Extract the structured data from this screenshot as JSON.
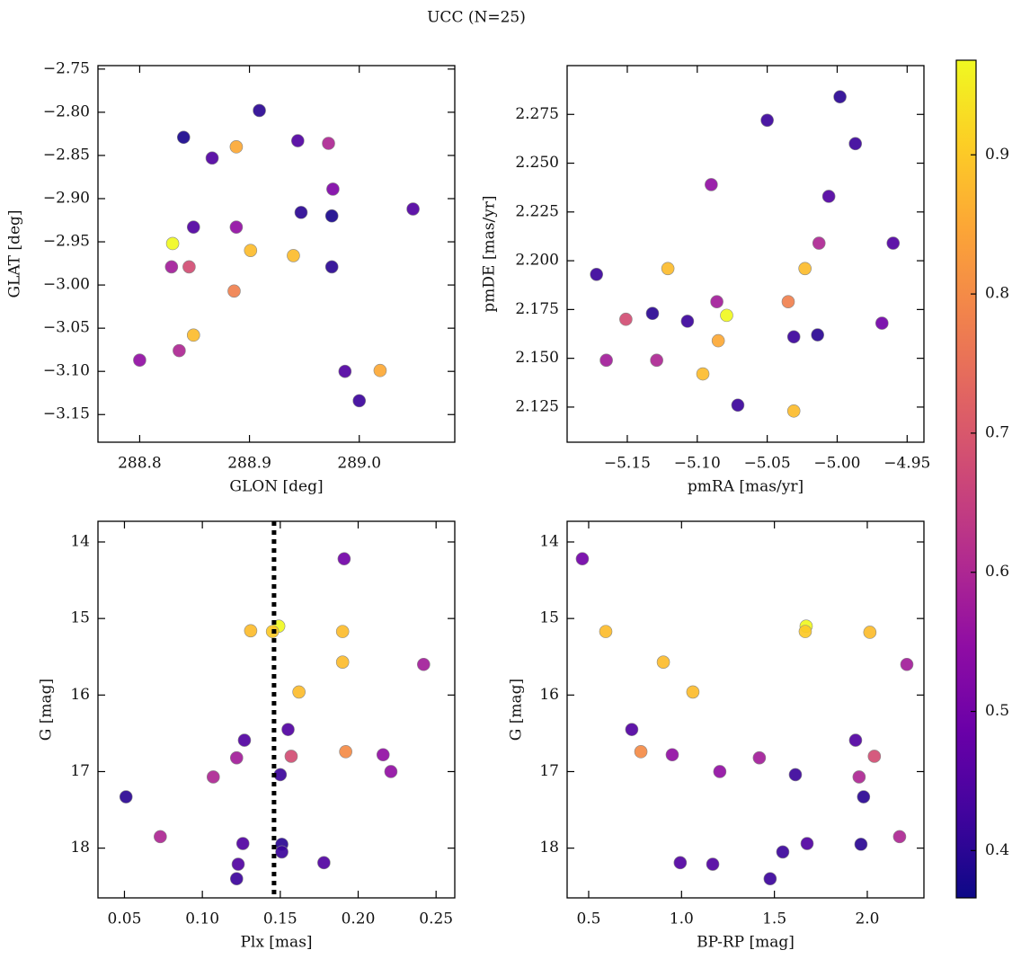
{
  "title": "UCC (N=25)",
  "chart_data": [
    {
      "type": "scatter",
      "xlabel": "GLON [deg]",
      "ylabel": "GLAT [deg]",
      "x": [
        288.909,
        288.84,
        288.866,
        288.888,
        288.944,
        288.972,
        288.976,
        289.049,
        288.947,
        288.975,
        288.849,
        288.888,
        288.83,
        288.901,
        288.94,
        288.829,
        288.845,
        288.975,
        288.886,
        288.849,
        288.836,
        288.8,
        288.987,
        289.019,
        289.0
      ],
      "y": [
        -2.798,
        -2.829,
        -2.853,
        -2.84,
        -2.833,
        -2.836,
        -2.889,
        -2.912,
        -2.916,
        -2.92,
        -2.933,
        -2.933,
        -2.952,
        -2.96,
        -2.966,
        -2.979,
        -2.979,
        -2.979,
        -3.007,
        -3.058,
        -3.076,
        -3.087,
        -3.1,
        -3.099,
        -3.134
      ],
      "c": [
        0.4,
        0.38,
        0.45,
        0.85,
        0.45,
        0.6,
        0.52,
        0.45,
        0.4,
        0.38,
        0.45,
        0.55,
        0.97,
        0.88,
        0.88,
        0.58,
        0.68,
        0.4,
        0.78,
        0.88,
        0.6,
        0.55,
        0.45,
        0.85,
        0.42
      ],
      "xlim": [
        288.762,
        289.087
      ],
      "ylim": [
        -3.182,
        -2.746
      ],
      "xticks": [
        288.8,
        288.9,
        {
          "value": 289.0,
          "label": "289.0"
        }
      ],
      "yticks": [
        {
          "value": -2.75,
          "label": "−2.75"
        },
        {
          "value": -2.8,
          "label": "−2.80"
        },
        {
          "value": -2.85,
          "label": "−2.85"
        },
        {
          "value": -2.9,
          "label": "−2.90"
        },
        {
          "value": -2.95,
          "label": "−2.95"
        },
        {
          "value": -3.0,
          "label": "−3.00"
        },
        {
          "value": -3.05,
          "label": "−3.05"
        },
        {
          "value": -3.1,
          "label": "−3.10"
        },
        {
          "value": -3.15,
          "label": "−3.15"
        }
      ],
      "yinvert": false
    },
    {
      "type": "scatter",
      "xlabel": "pmRA [mas/yr]",
      "ylabel": "pmDE [mas/yr]",
      "x": [
        -4.998,
        -5.05,
        -4.987,
        -5.09,
        -5.006,
        -5.172,
        -5.121,
        -5.023,
        -5.013,
        -4.96,
        -5.132,
        -5.107,
        -5.086,
        -5.079,
        -5.035,
        -5.151,
        -5.031,
        -5.014,
        -4.968,
        -5.085,
        -5.165,
        -5.129,
        -5.096,
        -5.071,
        -5.031
      ],
      "y": [
        2.284,
        2.272,
        2.26,
        2.239,
        2.233,
        2.193,
        2.196,
        2.196,
        2.209,
        2.209,
        2.173,
        2.169,
        2.179,
        2.172,
        2.179,
        2.17,
        2.161,
        2.162,
        2.168,
        2.159,
        2.149,
        2.149,
        2.142,
        2.126,
        2.123
      ],
      "c": [
        0.4,
        0.42,
        0.42,
        0.55,
        0.45,
        0.42,
        0.88,
        0.88,
        0.6,
        0.45,
        0.4,
        0.42,
        0.58,
        0.97,
        0.78,
        0.68,
        0.42,
        0.4,
        0.5,
        0.85,
        0.58,
        0.6,
        0.88,
        0.42,
        0.88
      ],
      "xlim": [
        -5.193,
        -4.938
      ],
      "ylim": [
        2.107,
        2.3
      ],
      "xticks": [
        {
          "value": -5.15,
          "label": "−5.15"
        },
        {
          "value": -5.1,
          "label": "−5.10"
        },
        {
          "value": -5.05,
          "label": "−5.05"
        },
        {
          "value": -5.0,
          "label": "−5.00"
        },
        {
          "value": -4.95,
          "label": "−4.95"
        }
      ],
      "yticks": [
        2.125,
        {
          "value": 2.15,
          "label": "2.150"
        },
        2.175,
        {
          "value": 2.2,
          "label": "2.200"
        },
        2.225,
        {
          "value": 2.25,
          "label": "2.250"
        },
        2.275
      ],
      "yinvert": false
    },
    {
      "type": "scatter",
      "xlabel": "Plx [mas]",
      "ylabel": "G [mag]",
      "x": [
        0.191,
        0.149,
        0.145,
        0.131,
        0.19,
        0.19,
        0.242,
        0.162,
        0.155,
        0.127,
        0.122,
        0.157,
        0.192,
        0.216,
        0.15,
        0.221,
        0.107,
        0.051,
        0.073,
        0.126,
        0.151,
        0.151,
        0.178,
        0.123,
        0.122
      ],
      "y": [
        14.22,
        15.1,
        15.17,
        15.16,
        15.17,
        15.57,
        15.6,
        15.96,
        16.45,
        16.59,
        16.82,
        16.8,
        16.74,
        16.78,
        17.04,
        17.0,
        17.07,
        17.33,
        17.85,
        17.94,
        17.95,
        18.05,
        18.19,
        18.21,
        18.4
      ],
      "c": [
        0.5,
        0.97,
        0.9,
        0.88,
        0.88,
        0.88,
        0.58,
        0.88,
        0.45,
        0.45,
        0.58,
        0.68,
        0.8,
        0.55,
        0.42,
        0.55,
        0.6,
        0.4,
        0.6,
        0.45,
        0.4,
        0.42,
        0.45,
        0.45,
        0.42
      ],
      "xlim": [
        0.033,
        0.262
      ],
      "ylim": [
        13.73,
        18.65
      ],
      "xticks": [
        0.05,
        {
          "value": 0.1,
          "label": "0.10"
        },
        0.15,
        {
          "value": 0.2,
          "label": "0.20"
        },
        0.25
      ],
      "yticks": [
        14,
        15,
        16,
        17,
        18
      ],
      "yinvert": true,
      "vline": 0.146
    },
    {
      "type": "scatter",
      "xlabel": "BP-RP [mag]",
      "ylabel": "G [mag]",
      "x": [
        0.466,
        0.592,
        1.671,
        1.666,
        2.014,
        0.902,
        2.213,
        1.061,
        0.732,
        0.781,
        0.95,
        1.419,
        1.937,
        2.038,
        1.206,
        1.613,
        1.956,
        1.98,
        2.174,
        1.676,
        1.966,
        1.545,
        0.993,
        1.168,
        1.477
      ],
      "y": [
        14.22,
        15.17,
        15.1,
        15.17,
        15.18,
        15.57,
        15.6,
        15.96,
        16.45,
        16.74,
        16.78,
        16.82,
        16.59,
        16.8,
        17.0,
        17.04,
        17.07,
        17.33,
        17.85,
        17.94,
        17.95,
        18.05,
        18.19,
        18.21,
        18.4
      ],
      "c": [
        0.5,
        0.88,
        0.97,
        0.9,
        0.88,
        0.88,
        0.58,
        0.88,
        0.45,
        0.8,
        0.55,
        0.58,
        0.45,
        0.68,
        0.55,
        0.42,
        0.6,
        0.4,
        0.6,
        0.45,
        0.4,
        0.42,
        0.45,
        0.45,
        0.42
      ],
      "xlim": [
        0.384,
        2.305
      ],
      "ylim": [
        13.73,
        18.65
      ],
      "xticks": [
        0.5,
        {
          "value": 1.0,
          "label": "1.0"
        },
        1.5,
        {
          "value": 2.0,
          "label": "2.0"
        }
      ],
      "yticks": [
        14,
        15,
        16,
        17,
        18
      ],
      "yinvert": true
    }
  ],
  "colorbar": {
    "cmap": "plasma",
    "clim": [
      0.366,
      0.968
    ],
    "ticks": [
      0.4,
      0.5,
      0.6,
      0.7,
      0.8,
      0.9
    ]
  }
}
